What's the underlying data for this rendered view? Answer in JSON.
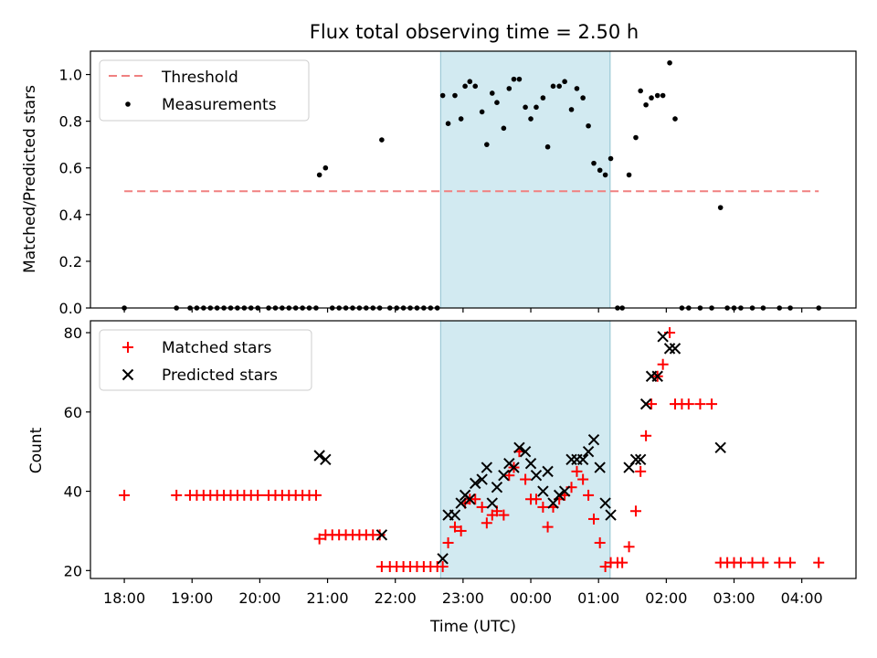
{
  "figure_title": "Flux total observing time = 2.50 h",
  "x_axis_label": "Time (UTC)",
  "x_tick_labels": [
    "18:00",
    "19:00",
    "20:00",
    "21:00",
    "22:00",
    "23:00",
    "00:00",
    "01:00",
    "02:00",
    "03:00",
    "04:00"
  ],
  "colors": {
    "threshold": "#f08080",
    "matched": "#ff0000",
    "predicted": "#000000",
    "measurements": "#000000",
    "highlight": "#add8e6"
  },
  "chart_data": [
    {
      "type": "scatter",
      "title": "Flux total observing time = 2.50 h",
      "ylabel": "Matched/Predicted stars",
      "xlabel": "",
      "x_units": "hours since 18:00 UTC",
      "xlim": [
        -0.5,
        10.8
      ],
      "ylim": [
        0,
        1.1
      ],
      "y_ticks": [
        "0.0",
        "0.2",
        "0.4",
        "0.6",
        "0.8",
        "1.0"
      ],
      "highlight_span": [
        4.67,
        7.17
      ],
      "legend": [
        "Threshold",
        "Measurements"
      ],
      "legend_position": "top-left",
      "threshold": {
        "name": "Threshold",
        "y": 0.5,
        "x_range": [
          0,
          10.25
        ]
      },
      "series": [
        {
          "name": "Measurements",
          "points": [
            [
              0.0,
              0.0
            ],
            [
              0.77,
              0.0
            ],
            [
              0.97,
              0.0
            ],
            [
              1.07,
              0.0
            ],
            [
              1.17,
              0.0
            ],
            [
              1.27,
              0.0
            ],
            [
              1.37,
              0.0
            ],
            [
              1.47,
              0.0
            ],
            [
              1.57,
              0.0
            ],
            [
              1.67,
              0.0
            ],
            [
              1.77,
              0.0
            ],
            [
              1.87,
              0.0
            ],
            [
              1.97,
              0.0
            ],
            [
              2.13,
              0.0
            ],
            [
              2.23,
              0.0
            ],
            [
              2.33,
              0.0
            ],
            [
              2.43,
              0.0
            ],
            [
              2.53,
              0.0
            ],
            [
              2.63,
              0.0
            ],
            [
              2.73,
              0.0
            ],
            [
              2.83,
              0.0
            ],
            [
              2.88,
              0.57
            ],
            [
              2.97,
              0.6
            ],
            [
              3.07,
              0.0
            ],
            [
              3.17,
              0.0
            ],
            [
              3.27,
              0.0
            ],
            [
              3.37,
              0.0
            ],
            [
              3.47,
              0.0
            ],
            [
              3.57,
              0.0
            ],
            [
              3.67,
              0.0
            ],
            [
              3.77,
              0.0
            ],
            [
              3.8,
              0.72
            ],
            [
              3.92,
              0.0
            ],
            [
              4.02,
              0.0
            ],
            [
              4.12,
              0.0
            ],
            [
              4.22,
              0.0
            ],
            [
              4.32,
              0.0
            ],
            [
              4.42,
              0.0
            ],
            [
              4.52,
              0.0
            ],
            [
              4.62,
              0.0
            ],
            [
              4.7,
              0.91
            ],
            [
              4.78,
              0.79
            ],
            [
              4.88,
              0.91
            ],
            [
              4.97,
              0.81
            ],
            [
              5.03,
              0.95
            ],
            [
              5.1,
              0.97
            ],
            [
              5.18,
              0.95
            ],
            [
              5.28,
              0.84
            ],
            [
              5.35,
              0.7
            ],
            [
              5.43,
              0.92
            ],
            [
              5.5,
              0.88
            ],
            [
              5.6,
              0.77
            ],
            [
              5.68,
              0.94
            ],
            [
              5.75,
              0.98
            ],
            [
              5.83,
              0.98
            ],
            [
              5.92,
              0.86
            ],
            [
              6.0,
              0.81
            ],
            [
              6.08,
              0.86
            ],
            [
              6.18,
              0.9
            ],
            [
              6.25,
              0.69
            ],
            [
              6.33,
              0.95
            ],
            [
              6.42,
              0.95
            ],
            [
              6.5,
              0.97
            ],
            [
              6.6,
              0.85
            ],
            [
              6.68,
              0.94
            ],
            [
              6.77,
              0.9
            ],
            [
              6.85,
              0.78
            ],
            [
              6.93,
              0.62
            ],
            [
              7.02,
              0.59
            ],
            [
              7.1,
              0.57
            ],
            [
              7.18,
              0.64
            ],
            [
              7.28,
              0.0
            ],
            [
              7.35,
              0.0
            ],
            [
              7.45,
              0.57
            ],
            [
              7.55,
              0.73
            ],
            [
              7.62,
              0.93
            ],
            [
              7.7,
              0.87
            ],
            [
              7.78,
              0.9
            ],
            [
              7.87,
              0.91
            ],
            [
              7.95,
              0.91
            ],
            [
              8.05,
              1.05
            ],
            [
              8.13,
              0.81
            ],
            [
              8.23,
              0.0
            ],
            [
              8.33,
              0.0
            ],
            [
              8.5,
              0.0
            ],
            [
              8.67,
              0.0
            ],
            [
              8.8,
              0.43
            ],
            [
              8.9,
              0.0
            ],
            [
              9.0,
              0.0
            ],
            [
              9.1,
              0.0
            ],
            [
              9.27,
              0.0
            ],
            [
              9.43,
              0.0
            ],
            [
              9.67,
              0.0
            ],
            [
              9.83,
              0.0
            ],
            [
              10.25,
              0.0
            ]
          ]
        }
      ]
    },
    {
      "type": "scatter",
      "ylabel": "Count",
      "xlabel": "Time (UTC)",
      "x_units": "hours since 18:00 UTC",
      "xlim": [
        -0.5,
        10.8
      ],
      "ylim": [
        18,
        83
      ],
      "y_ticks": [
        "20",
        "40",
        "60",
        "80"
      ],
      "x_ticks": [
        "18:00",
        "19:00",
        "20:00",
        "21:00",
        "22:00",
        "23:00",
        "00:00",
        "01:00",
        "02:00",
        "03:00",
        "04:00"
      ],
      "highlight_span": [
        4.67,
        7.17
      ],
      "legend": [
        "Matched stars",
        "Predicted stars"
      ],
      "legend_position": "top-left",
      "series": [
        {
          "name": "Matched stars",
          "marker": "+",
          "points": [
            [
              0.0,
              39
            ],
            [
              0.77,
              39
            ],
            [
              0.97,
              39
            ],
            [
              1.07,
              39
            ],
            [
              1.17,
              39
            ],
            [
              1.27,
              39
            ],
            [
              1.37,
              39
            ],
            [
              1.47,
              39
            ],
            [
              1.57,
              39
            ],
            [
              1.67,
              39
            ],
            [
              1.77,
              39
            ],
            [
              1.87,
              39
            ],
            [
              1.97,
              39
            ],
            [
              2.13,
              39
            ],
            [
              2.23,
              39
            ],
            [
              2.33,
              39
            ],
            [
              2.43,
              39
            ],
            [
              2.53,
              39
            ],
            [
              2.63,
              39
            ],
            [
              2.73,
              39
            ],
            [
              2.83,
              39
            ],
            [
              2.88,
              28
            ],
            [
              2.97,
              29
            ],
            [
              3.07,
              29
            ],
            [
              3.17,
              29
            ],
            [
              3.27,
              29
            ],
            [
              3.37,
              29
            ],
            [
              3.47,
              29
            ],
            [
              3.57,
              29
            ],
            [
              3.67,
              29
            ],
            [
              3.77,
              29
            ],
            [
              3.8,
              21
            ],
            [
              3.92,
              21
            ],
            [
              4.02,
              21
            ],
            [
              4.12,
              21
            ],
            [
              4.22,
              21
            ],
            [
              4.32,
              21
            ],
            [
              4.42,
              21
            ],
            [
              4.52,
              21
            ],
            [
              4.62,
              21
            ],
            [
              4.7,
              21
            ],
            [
              4.78,
              27
            ],
            [
              4.88,
              31
            ],
            [
              4.97,
              30
            ],
            [
              5.03,
              37
            ],
            [
              5.1,
              38
            ],
            [
              5.18,
              38
            ],
            [
              5.28,
              36
            ],
            [
              5.35,
              32
            ],
            [
              5.43,
              34
            ],
            [
              5.5,
              35
            ],
            [
              5.6,
              34
            ],
            [
              5.68,
              44
            ],
            [
              5.75,
              46
            ],
            [
              5.83,
              50
            ],
            [
              5.92,
              43
            ],
            [
              6.0,
              38
            ],
            [
              6.08,
              38
            ],
            [
              6.18,
              36
            ],
            [
              6.25,
              31
            ],
            [
              6.33,
              36
            ],
            [
              6.42,
              38
            ],
            [
              6.5,
              39
            ],
            [
              6.6,
              41
            ],
            [
              6.68,
              45
            ],
            [
              6.77,
              43
            ],
            [
              6.85,
              39
            ],
            [
              6.93,
              33
            ],
            [
              7.02,
              27
            ],
            [
              7.1,
              21
            ],
            [
              7.18,
              22
            ],
            [
              7.28,
              22
            ],
            [
              7.35,
              22
            ],
            [
              7.45,
              26
            ],
            [
              7.55,
              35
            ],
            [
              7.62,
              45
            ],
            [
              7.7,
              54
            ],
            [
              7.78,
              62
            ],
            [
              7.87,
              69
            ],
            [
              7.95,
              72
            ],
            [
              8.05,
              80
            ],
            [
              8.13,
              62
            ],
            [
              8.23,
              62
            ],
            [
              8.33,
              62
            ],
            [
              8.5,
              62
            ],
            [
              8.67,
              62
            ],
            [
              8.8,
              22
            ],
            [
              8.9,
              22
            ],
            [
              9.0,
              22
            ],
            [
              9.1,
              22
            ],
            [
              9.27,
              22
            ],
            [
              9.43,
              22
            ],
            [
              9.67,
              22
            ],
            [
              9.83,
              22
            ],
            [
              10.25,
              22
            ]
          ]
        },
        {
          "name": "Predicted stars",
          "marker": "x",
          "points": [
            [
              2.88,
              49
            ],
            [
              2.97,
              48
            ],
            [
              3.8,
              29
            ],
            [
              4.7,
              23
            ],
            [
              4.78,
              34
            ],
            [
              4.88,
              34
            ],
            [
              4.97,
              37
            ],
            [
              5.03,
              39
            ],
            [
              5.1,
              38
            ],
            [
              5.18,
              42
            ],
            [
              5.28,
              43
            ],
            [
              5.35,
              46
            ],
            [
              5.43,
              37
            ],
            [
              5.5,
              41
            ],
            [
              5.6,
              44
            ],
            [
              5.68,
              47
            ],
            [
              5.75,
              46
            ],
            [
              5.83,
              51
            ],
            [
              5.92,
              50
            ],
            [
              6.0,
              47
            ],
            [
              6.08,
              44
            ],
            [
              6.18,
              40
            ],
            [
              6.25,
              45
            ],
            [
              6.33,
              37
            ],
            [
              6.42,
              39
            ],
            [
              6.5,
              40
            ],
            [
              6.6,
              48
            ],
            [
              6.68,
              48
            ],
            [
              6.77,
              48
            ],
            [
              6.85,
              50
            ],
            [
              6.93,
              53
            ],
            [
              7.02,
              46
            ],
            [
              7.1,
              37
            ],
            [
              7.18,
              34
            ],
            [
              7.45,
              46
            ],
            [
              7.55,
              48
            ],
            [
              7.62,
              48
            ],
            [
              7.7,
              62
            ],
            [
              7.78,
              69
            ],
            [
              7.87,
              69
            ],
            [
              7.95,
              79
            ],
            [
              8.05,
              76
            ],
            [
              8.13,
              76
            ],
            [
              8.8,
              51
            ]
          ]
        }
      ]
    }
  ]
}
